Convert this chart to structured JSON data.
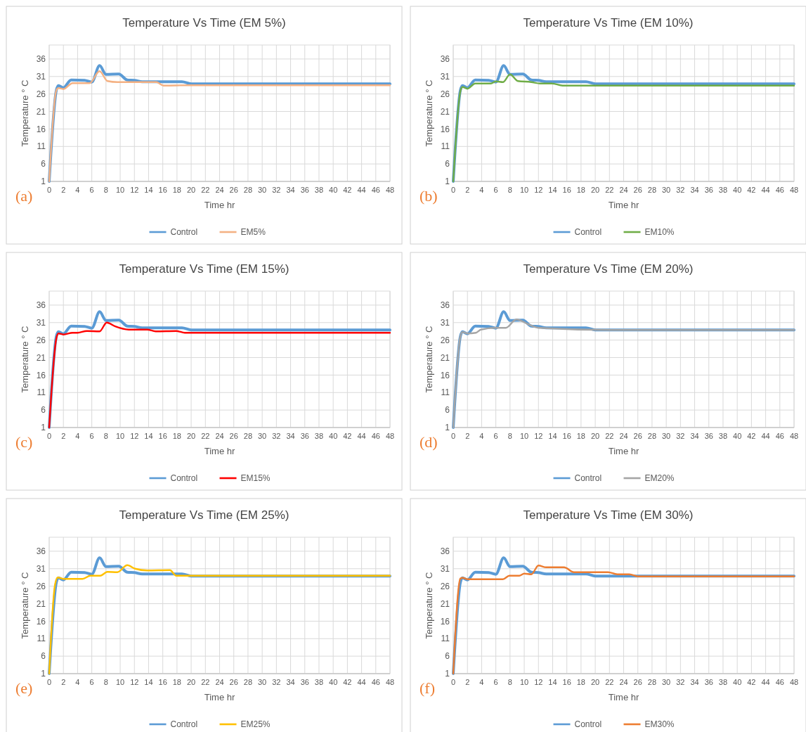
{
  "chart_data": [
    {
      "type": "line",
      "title": "Temperature Vs Time (EM 5%)",
      "xlabel": "Time hr",
      "ylabel": "Temperature ° C",
      "annotations": [
        "(a)"
      ],
      "xlim": [
        0,
        48
      ],
      "xticks": [
        0,
        2,
        4,
        6,
        8,
        10,
        12,
        14,
        16,
        18,
        20,
        22,
        24,
        26,
        28,
        30,
        32,
        34,
        36,
        38,
        40,
        42,
        44,
        46,
        48
      ],
      "ylim": [
        1,
        40
      ],
      "yticks": [
        1,
        6,
        11,
        16,
        21,
        26,
        31,
        36
      ],
      "grid": true,
      "legend": "bottom",
      "series": [
        {
          "name": "Control",
          "color": "#5b9bd5",
          "x": [
            0,
            1,
            1.3,
            2,
            3.1,
            5,
            6,
            7.1,
            8,
            9.8,
            11,
            12,
            13.1,
            18.7,
            20,
            48
          ],
          "values": [
            1,
            27,
            28.4,
            27.8,
            30,
            29.9,
            29.4,
            34.1,
            31.6,
            31.7,
            30,
            29.9,
            29.5,
            29.5,
            28.9,
            28.9
          ]
        },
        {
          "name": "EM5%",
          "color": "#f4b183",
          "x": [
            0,
            1,
            1.3,
            2,
            3.3,
            5.7,
            7.1,
            8.2,
            9.6,
            15.1,
            16.1,
            19.8,
            48
          ],
          "values": [
            1,
            27,
            27.7,
            27.4,
            29.1,
            29.1,
            32.5,
            29.7,
            29.4,
            29.4,
            28.4,
            28.5,
            28.5
          ]
        }
      ]
    },
    {
      "type": "line",
      "title": "Temperature Vs Time (EM 10%)",
      "xlabel": "Time hr",
      "ylabel": "Temperature ° C",
      "annotations": [
        "(b)"
      ],
      "xlim": [
        0,
        48
      ],
      "xticks": [
        0,
        2,
        4,
        6,
        8,
        10,
        12,
        14,
        16,
        18,
        20,
        22,
        24,
        26,
        28,
        30,
        32,
        34,
        36,
        38,
        40,
        42,
        44,
        46,
        48
      ],
      "ylim": [
        1,
        40
      ],
      "yticks": [
        1,
        6,
        11,
        16,
        21,
        26,
        31,
        36
      ],
      "grid": true,
      "legend": "bottom",
      "series": [
        {
          "name": "Control",
          "color": "#5b9bd5",
          "x": [
            0,
            1,
            1.3,
            2,
            3.1,
            5,
            6,
            7.1,
            8,
            9.8,
            11,
            12,
            13.1,
            18.7,
            20,
            48
          ],
          "values": [
            1,
            27,
            28.4,
            27.8,
            30,
            29.9,
            29.4,
            34.1,
            31.6,
            31.7,
            30,
            29.9,
            29.5,
            29.5,
            28.9,
            28.9
          ]
        },
        {
          "name": "EM10%",
          "color": "#70ad47",
          "x": [
            0,
            1,
            1.3,
            2,
            3.1,
            5.3,
            6,
            7,
            8,
            9.1,
            11,
            12.2,
            13.9,
            15.4,
            48
          ],
          "values": [
            1,
            26.7,
            28,
            27.5,
            29,
            29,
            29.6,
            29.4,
            31.6,
            29.7,
            29.4,
            29,
            29,
            28.4,
            28.4
          ]
        }
      ]
    },
    {
      "type": "line",
      "title": "Temperature Vs Time (EM 15%)",
      "xlabel": "Time hr",
      "ylabel": "Temperature ° C",
      "annotations": [
        "(c)"
      ],
      "xlim": [
        0,
        48
      ],
      "xticks": [
        0,
        2,
        4,
        6,
        8,
        10,
        12,
        14,
        16,
        18,
        20,
        22,
        24,
        26,
        28,
        30,
        32,
        34,
        36,
        38,
        40,
        42,
        44,
        46,
        48
      ],
      "ylim": [
        1,
        40
      ],
      "yticks": [
        1,
        6,
        11,
        16,
        21,
        26,
        31,
        36
      ],
      "grid": true,
      "legend": "bottom",
      "series": [
        {
          "name": "Control",
          "color": "#5b9bd5",
          "x": [
            0,
            1,
            1.3,
            2,
            3.1,
            5,
            6,
            7.1,
            8,
            9.8,
            11,
            12,
            13.1,
            18.7,
            20,
            48
          ],
          "values": [
            1,
            27,
            28.4,
            27.8,
            30,
            29.9,
            29.4,
            34.1,
            31.6,
            31.7,
            30,
            29.9,
            29.5,
            29.5,
            28.9,
            28.9
          ]
        },
        {
          "name": "EM15%",
          "color": "#ff0000",
          "x": [
            0,
            1,
            1.3,
            2,
            3.3,
            4,
            5.3,
            7.1,
            8.1,
            9.3,
            11.2,
            13.8,
            15,
            17.9,
            19.1,
            48
          ],
          "values": [
            1,
            26.4,
            27.9,
            27.6,
            28.1,
            28.1,
            28.6,
            28.5,
            31,
            29.9,
            29,
            29,
            28.5,
            28.6,
            28.1,
            28.1
          ]
        }
      ]
    },
    {
      "type": "line",
      "title": "Temperature Vs Time (EM 20%)",
      "xlabel": "Time hr",
      "ylabel": "Temperature ° C",
      "annotations": [
        "(d)"
      ],
      "xlim": [
        0,
        48
      ],
      "xticks": [
        0,
        2,
        4,
        6,
        8,
        10,
        12,
        14,
        16,
        18,
        20,
        22,
        24,
        26,
        28,
        30,
        32,
        34,
        36,
        38,
        40,
        42,
        44,
        46,
        48
      ],
      "ylim": [
        1,
        40
      ],
      "yticks": [
        1,
        6,
        11,
        16,
        21,
        26,
        31,
        36
      ],
      "grid": true,
      "legend": "bottom",
      "series": [
        {
          "name": "Control",
          "color": "#5b9bd5",
          "x": [
            0,
            1,
            1.3,
            2,
            3.1,
            5,
            6,
            7.1,
            8,
            9.8,
            11,
            12,
            13.1,
            18.7,
            20,
            48
          ],
          "values": [
            1,
            27,
            28.4,
            27.8,
            30,
            29.9,
            29.4,
            34.1,
            31.6,
            31.7,
            30,
            29.9,
            29.5,
            29.5,
            28.9,
            28.9
          ]
        },
        {
          "name": "EM20%",
          "color": "#a5a5a5",
          "x": [
            0,
            1,
            1.3,
            2,
            3.2,
            3.9,
            5.9,
            7.4,
            8.9,
            10.5,
            12,
            22,
            48
          ],
          "values": [
            1,
            27,
            28.3,
            27.9,
            28.1,
            29,
            29.5,
            29.5,
            31.9,
            30.6,
            29.5,
            28.9,
            28.9
          ]
        }
      ]
    },
    {
      "type": "line",
      "title": "Temperature Vs Time (EM 25%)",
      "xlabel": "Time hr",
      "ylabel": "Temperature ° C",
      "annotations": [
        "(e)"
      ],
      "xlim": [
        0,
        48
      ],
      "xticks": [
        0,
        2,
        4,
        6,
        8,
        10,
        12,
        14,
        16,
        18,
        20,
        22,
        24,
        26,
        28,
        30,
        32,
        34,
        36,
        38,
        40,
        42,
        44,
        46,
        48
      ],
      "ylim": [
        1,
        40
      ],
      "yticks": [
        1,
        6,
        11,
        16,
        21,
        26,
        31,
        36
      ],
      "grid": true,
      "legend": "bottom",
      "series": [
        {
          "name": "Control",
          "color": "#5b9bd5",
          "x": [
            0,
            1,
            1.3,
            2,
            3.1,
            5,
            6,
            7.1,
            8,
            9.8,
            11,
            12,
            13.1,
            18.7,
            20,
            48
          ],
          "values": [
            1,
            27,
            28.4,
            27.8,
            30,
            29.9,
            29.4,
            34.1,
            31.6,
            31.7,
            30,
            29.9,
            29.5,
            29.5,
            28.9,
            28.9
          ]
        },
        {
          "name": "EM25%",
          "color": "#ffc000",
          "x": [
            0,
            0.8,
            1.2,
            2,
            4.7,
            5.8,
            7.2,
            8.2,
            9.6,
            11,
            12.1,
            13.8,
            17,
            17.9,
            19.9,
            48
          ],
          "values": [
            1,
            26.2,
            28.5,
            28.1,
            28.1,
            29,
            29,
            30.1,
            30,
            32,
            31,
            30.5,
            30.6,
            29,
            29,
            29
          ]
        }
      ]
    },
    {
      "type": "line",
      "title": "Temperature Vs Time (EM 30%)",
      "xlabel": "Time hr",
      "ylabel": "Temperature ° C",
      "annotations": [
        "(f)"
      ],
      "xlim": [
        0,
        48
      ],
      "xticks": [
        0,
        2,
        4,
        6,
        8,
        10,
        12,
        14,
        16,
        18,
        20,
        22,
        24,
        26,
        28,
        30,
        32,
        34,
        36,
        38,
        40,
        42,
        44,
        46,
        48
      ],
      "ylim": [
        1,
        40
      ],
      "yticks": [
        1,
        6,
        11,
        16,
        21,
        26,
        31,
        36
      ],
      "grid": true,
      "legend": "bottom",
      "series": [
        {
          "name": "Control",
          "color": "#5b9bd5",
          "x": [
            0,
            1,
            1.3,
            2,
            3.1,
            5,
            6,
            7.1,
            8,
            9.8,
            11,
            12,
            13.1,
            18.7,
            20,
            48
          ],
          "values": [
            1,
            27,
            28.4,
            27.8,
            30,
            29.9,
            29.4,
            34.1,
            31.6,
            31.7,
            30,
            29.9,
            29.5,
            29.5,
            28.9,
            28.9
          ]
        },
        {
          "name": "EM30%",
          "color": "#ed7d31",
          "x": [
            0,
            1,
            1.3,
            2,
            7,
            7.9,
            9.3,
            10,
            11,
            12,
            13.1,
            15.6,
            17,
            21.8,
            23.1,
            24.8,
            26,
            48
          ],
          "values": [
            1,
            28.2,
            28.4,
            28,
            28,
            29,
            29,
            29.6,
            29.4,
            31.9,
            31.4,
            31.4,
            30,
            30,
            29.4,
            29.4,
            28.8,
            28.8
          ]
        }
      ]
    }
  ]
}
